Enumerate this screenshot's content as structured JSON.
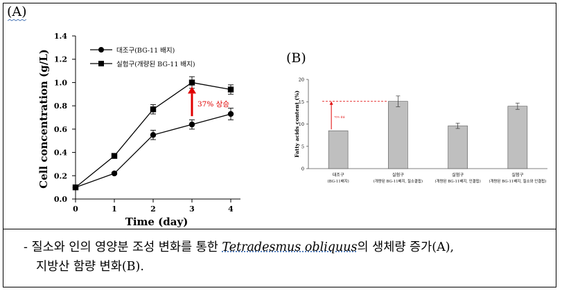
{
  "panel_a_label": "(A)",
  "panel_b_label": "(B)",
  "caption": {
    "dash": "-",
    "part1": "질소와 인의 영양분 조성 변화를 통한",
    "species": "Tetradesmus obliquus",
    "part2": "의 생체량 증가(A),",
    "line2": "지방산 함량 변화(B)."
  },
  "chart_data": [
    {
      "type": "line",
      "title": "",
      "xlabel": "Time (day)",
      "ylabel": "Cell concentration (g/L)",
      "x": [
        0,
        1,
        2,
        3,
        4
      ],
      "xticks": [
        "0",
        "1",
        "2",
        "3",
        "4"
      ],
      "yticks": [
        "0.0",
        "0.2",
        "0.4",
        "0.6",
        "0.8",
        "1.0",
        "1.2",
        "1.4"
      ],
      "xlim": [
        0,
        4
      ],
      "ylim": [
        0,
        1.4
      ],
      "legend_position": "top-left",
      "series": [
        {
          "name": "대조구(BG-11 배지)",
          "marker": "circle",
          "values": [
            0.1,
            0.22,
            0.55,
            0.64,
            0.73
          ],
          "errors": [
            0.01,
            0.01,
            0.04,
            0.04,
            0.05
          ]
        },
        {
          "name": "실험구(개량된 BG-11 배지)",
          "marker": "square",
          "values": [
            0.1,
            0.37,
            0.77,
            1.0,
            0.94
          ],
          "errors": [
            0.01,
            0.01,
            0.04,
            0.05,
            0.04
          ]
        }
      ],
      "annotation": {
        "text": "37% 상승",
        "color": "#e00000",
        "at_x": 3
      }
    },
    {
      "type": "bar",
      "title": "",
      "xlabel": "",
      "ylabel": "Fatty acids content (%)",
      "categories": [
        "대조구|(BG-11배지)",
        "실험구|(개량된 BG-11배지, 질소결핍)",
        "실험구|(개량된 BG-11배지, 인결핍)",
        "실험구|(개량된 BG-11배지, 질소와 인결핍)"
      ],
      "values": [
        8.5,
        15.1,
        9.6,
        14.0
      ],
      "errors": [
        0.0,
        1.2,
        0.6,
        0.7
      ],
      "yticks": [
        "0",
        "5",
        "10",
        "15",
        "20"
      ],
      "ylim": [
        0,
        20
      ],
      "bar_color": "#bfbfbf",
      "reference_value": 15.1,
      "annotation": {
        "text": "76% 상승",
        "color": "#e00000"
      }
    }
  ]
}
